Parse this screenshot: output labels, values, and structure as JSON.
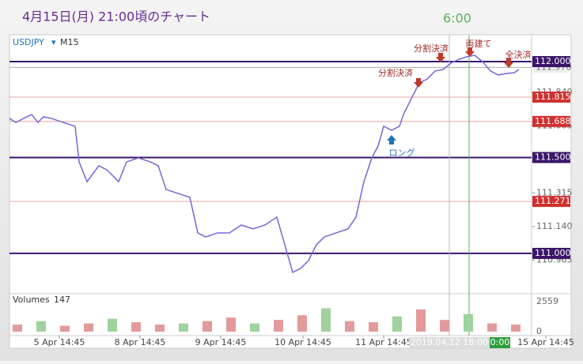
{
  "chart_data": {
    "type": "line",
    "title": "4月15日(月) 21:00頃のチャート",
    "time_note": "6:00",
    "symbol": "USDJPY",
    "timeframe": "M15",
    "x": [
      0,
      8,
      18,
      28,
      36,
      43,
      53,
      68,
      83,
      88,
      98,
      113,
      123,
      138,
      148,
      163,
      178,
      188,
      198,
      213,
      228,
      238,
      248,
      263,
      278,
      293,
      308,
      323,
      338,
      348,
      358,
      368,
      378,
      388,
      398,
      413,
      428,
      438,
      448,
      458,
      466,
      473,
      483,
      493,
      498,
      508,
      518,
      528,
      538,
      548,
      558,
      568,
      578,
      588,
      598,
      608,
      618,
      628,
      638,
      644
    ],
    "series": [
      {
        "name": "USDJPY",
        "color": "#7468d8",
        "values": [
          111.704,
          111.683,
          111.704,
          111.724,
          111.683,
          111.712,
          111.704,
          111.683,
          111.663,
          111.477,
          111.374,
          111.457,
          111.436,
          111.374,
          111.477,
          111.498,
          111.477,
          111.457,
          111.333,
          111.313,
          111.292,
          111.107,
          111.086,
          111.107,
          111.107,
          111.148,
          111.128,
          111.148,
          111.189,
          111.045,
          110.901,
          110.922,
          110.963,
          111.045,
          111.086,
          111.107,
          111.128,
          111.189,
          111.374,
          111.498,
          111.56,
          111.663,
          111.642,
          111.663,
          111.724,
          111.807,
          111.889,
          111.909,
          111.951,
          111.959,
          111.992,
          112.012,
          112.025,
          112.033,
          112.0,
          111.951,
          111.93,
          111.938,
          111.942,
          111.959
        ]
      }
    ],
    "xlim": [
      0,
      660
    ],
    "ylim": [
      110.798,
      112.136
    ],
    "xticks": [
      {
        "value": 63,
        "label": "5 Apr 14:45"
      },
      {
        "value": 165,
        "label": "8 Apr 14:45"
      },
      {
        "value": 267,
        "label": "9 Apr 14:45"
      },
      {
        "value": 371,
        "label": "10 Apr 14:45"
      },
      {
        "value": 473,
        "label": "11 Apr 14:45"
      },
      {
        "value": 678,
        "label": "15 Apr 14:45"
      }
    ],
    "yticks": [
      {
        "value": 111.84,
        "label": "111.840"
      },
      111.665,
      111.315,
      {
        "value": 111.14,
        "label": "111.140"
      },
      110.965
    ],
    "levels": [
      {
        "value": 112,
        "label": "112.000",
        "color": "#3a1668"
      },
      {
        "value": 111.815,
        "label": "111.815",
        "color": "#d0302f"
      },
      {
        "value": 111.688,
        "label": "111.688",
        "color": "#d0302f"
      },
      {
        "value": 111.5,
        "label": "111.500",
        "color": "#3a1668"
      },
      {
        "value": 111.271,
        "label": "111.271",
        "color": "#d0302f"
      },
      {
        "value": 111,
        "label": "111.000",
        "color": "#3a1668"
      }
    ],
    "current_price": {
      "value": 111.97,
      "label": "111.970"
    },
    "crosshair_label": "2019.04.12 18:00",
    "marker_label": "0:00",
    "annotations": [
      "分割決済",
      "分割決済",
      "両建て",
      "全決済",
      "ロング"
    ],
    "volume": {
      "label": "Volumes",
      "last": 147,
      "color": "#e39a9a",
      "x": [
        10,
        40,
        70,
        100,
        130,
        160,
        190,
        220,
        250,
        280,
        310,
        340,
        370,
        400,
        430,
        460,
        490,
        520,
        550,
        580,
        610,
        640
      ],
      "values": [
        600,
        900,
        500,
        700,
        1100,
        800,
        600,
        700,
        900,
        1200,
        700,
        1000,
        1400,
        2000,
        900,
        800,
        1300,
        1900,
        1000,
        1500,
        700,
        600
      ],
      "ylim": [
        0,
        2700
      ],
      "yticks": [
        0,
        2559
      ]
    }
  }
}
